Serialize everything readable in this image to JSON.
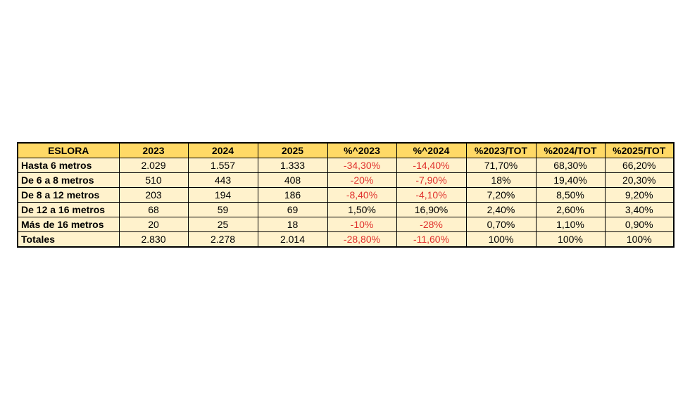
{
  "table": {
    "headers": [
      "ESLORA",
      "2023",
      "2024",
      "2025",
      "%^2023",
      "%^2024",
      "%2023/TOT",
      "%2024/TOT",
      "%2025/TOT"
    ],
    "rows": [
      [
        "Hasta 6 metros",
        "2.029",
        "1.557",
        "1.333",
        "-34,30%",
        "-14,40%",
        "71,70%",
        "68,30%",
        "66,20%"
      ],
      [
        "De 6 a 8 metros",
        "510",
        "443",
        "408",
        "-20%",
        "-7,90%",
        "18%",
        "19,40%",
        "20,30%"
      ],
      [
        "De 8 a 12 metros",
        "203",
        "194",
        "186",
        "-8,40%",
        "-4,10%",
        "7,20%",
        "8,50%",
        "9,20%"
      ],
      [
        "De 12 a 16 metros",
        "68",
        "59",
        "69",
        "1,50%",
        "16,90%",
        "2,40%",
        "2,60%",
        "3,40%"
      ],
      [
        "Más de 16 metros",
        "20",
        "25",
        "18",
        "-10%",
        "-28%",
        "0,70%",
        "1,10%",
        "0,90%"
      ],
      [
        "Totales",
        "2.830",
        "2.278",
        "2.014",
        "-28,80%",
        "-11,60%",
        "100%",
        "100%",
        "100%"
      ]
    ]
  },
  "colors": {
    "header_fill": "#ffd966",
    "cell_fill": "#fff2cc",
    "negative_text": "#e0312d",
    "border": "#000000"
  }
}
